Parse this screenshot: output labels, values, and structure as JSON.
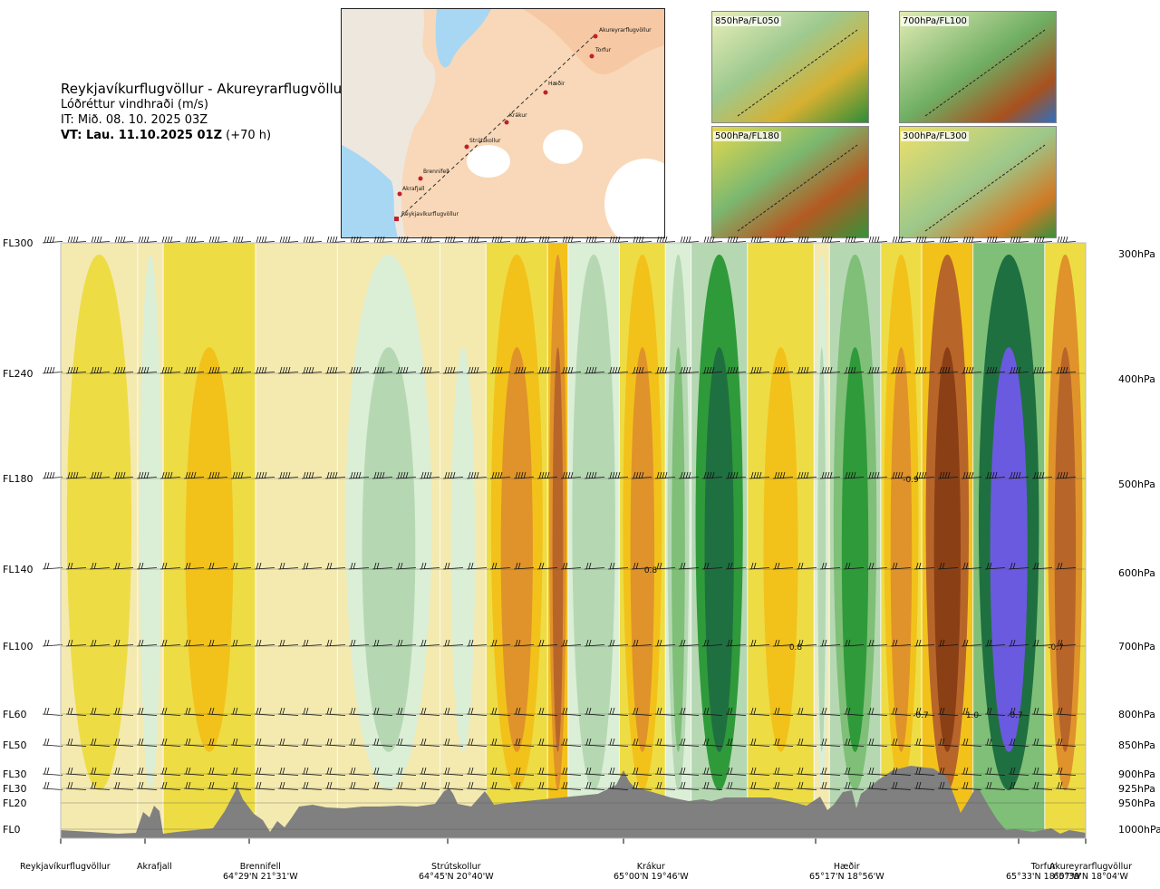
{
  "header": {
    "route": "Reykjavíkurflugvöllur - Akureyrarflugvöllur",
    "variable": "Lóðréttur vindhraði (m/s)",
    "issue_time": "IT: Mið. 08. 10. 2025 03Z",
    "valid_bold": "VT: Lau. 11.10.2025 01Z",
    "valid_lead": "(+70 h)"
  },
  "map": {
    "places": [
      "Akureyrarflugvöllur",
      "Torfur",
      "Hæðir",
      "Krákur",
      "Strútskollur",
      "Brennifell",
      "Akrafjall",
      "Reykjavíkurflugvöllur"
    ]
  },
  "mini_maps": [
    {
      "label": "850hPa/FL050"
    },
    {
      "label": "700hPa/FL100"
    },
    {
      "label": "500hPa/FL180"
    },
    {
      "label": "300hPa/FL300"
    }
  ],
  "colors": {
    "strong_down": "#8b3f15",
    "down2": "#b8652a",
    "down3": "#e0932a",
    "down4": "#f2c21b",
    "down5": "#eedc45",
    "weak": "#f4eab0",
    "up1": "#dbeed6",
    "up2": "#b5d8b3",
    "up3": "#7fbf78",
    "up4": "#2f9a3a",
    "up5": "#1f7040",
    "up6": "#4a7fbf",
    "up7": "#6a5adf",
    "terrain": "#808080"
  },
  "chart_data": {
    "type": "heatmap",
    "title": "Lóðréttur vindhraði (m/s)",
    "y_levels": [
      {
        "fl": "FL300",
        "hpa": "300hPa"
      },
      {
        "fl": "FL240",
        "hpa": "400hPa"
      },
      {
        "fl": "FL180",
        "hpa": "500hPa"
      },
      {
        "fl": "FL140",
        "hpa": "600hPa"
      },
      {
        "fl": "FL100",
        "hpa": "700hPa"
      },
      {
        "fl": "FL60",
        "hpa": "800hPa"
      },
      {
        "fl": "FL50",
        "hpa": "850hPa"
      },
      {
        "fl": "FL30",
        "hpa": "900hPa"
      },
      {
        "fl": "FL30",
        "hpa": "925hPa"
      },
      {
        "fl": "FL20",
        "hpa": "950hPa"
      },
      {
        "fl": "FL0",
        "hpa": "1000hPa"
      }
    ],
    "stations": [
      {
        "name": "Reykjavíkurflugvöllur",
        "coords": ""
      },
      {
        "name": "Akrafjall",
        "coords": ""
      },
      {
        "name": "Brennifell",
        "coords": "64°29'N 21°31'W"
      },
      {
        "name": "Strútskollur",
        "coords": "64°45'N 20°40'W"
      },
      {
        "name": "Krákur",
        "coords": "65°00'N 19°46'W"
      },
      {
        "name": "Hæðir",
        "coords": "65°17'N 18°56'W"
      },
      {
        "name": "Torfur",
        "coords": "65°33'N 18°07'W"
      },
      {
        "name": "Akureyrarflugvöllur",
        "coords": "65°39'N 18°04'W"
      }
    ],
    "annotations": [
      {
        "text": "-0.9",
        "level": "FL180",
        "near": "Hæðir"
      },
      {
        "text": "0.8",
        "level": "FL140",
        "near": "Krákur"
      },
      {
        "text": "0.8",
        "level": "FL100",
        "near": "Hæðir"
      },
      {
        "text": "-0.7",
        "level": "FL100",
        "near": "Akureyrarflugvöllur"
      },
      {
        "text": "-0.7",
        "level": "FL60",
        "near": "Hæðir"
      },
      {
        "text": "1.0",
        "level": "FL60",
        "near": "Torfur"
      },
      {
        "text": "-0.7",
        "level": "FL60",
        "near": "Torfur"
      }
    ],
    "bands": [
      {
        "x0": 0.0,
        "x1": 0.075,
        "w": -0.1
      },
      {
        "x0": 0.075,
        "x1": 0.1,
        "w": 0.15
      },
      {
        "x0": 0.1,
        "x1": 0.19,
        "w": -0.35
      },
      {
        "x0": 0.19,
        "x1": 0.27,
        "w": 0.05
      },
      {
        "x0": 0.27,
        "x1": 0.37,
        "w": 0.2
      },
      {
        "x0": 0.37,
        "x1": 0.415,
        "w": 0.1
      },
      {
        "x0": 0.415,
        "x1": 0.475,
        "w": -0.45
      },
      {
        "x0": 0.475,
        "x1": 0.495,
        "w": -0.65
      },
      {
        "x0": 0.495,
        "x1": 0.545,
        "w": 0.3
      },
      {
        "x0": 0.545,
        "x1": 0.59,
        "w": -0.5
      },
      {
        "x0": 0.59,
        "x1": 0.615,
        "w": 0.4
      },
      {
        "x0": 0.615,
        "x1": 0.67,
        "w": 0.8
      },
      {
        "x0": 0.67,
        "x1": 0.735,
        "w": -0.3
      },
      {
        "x0": 0.735,
        "x1": 0.75,
        "w": 0.2
      },
      {
        "x0": 0.75,
        "x1": 0.8,
        "w": 0.6
      },
      {
        "x0": 0.8,
        "x1": 0.84,
        "w": -0.45
      },
      {
        "x0": 0.84,
        "x1": 0.89,
        "w": -0.8
      },
      {
        "x0": 0.89,
        "x1": 0.96,
        "w": 1.0
      },
      {
        "x0": 0.96,
        "x1": 1.0,
        "w": -0.6
      }
    ]
  }
}
